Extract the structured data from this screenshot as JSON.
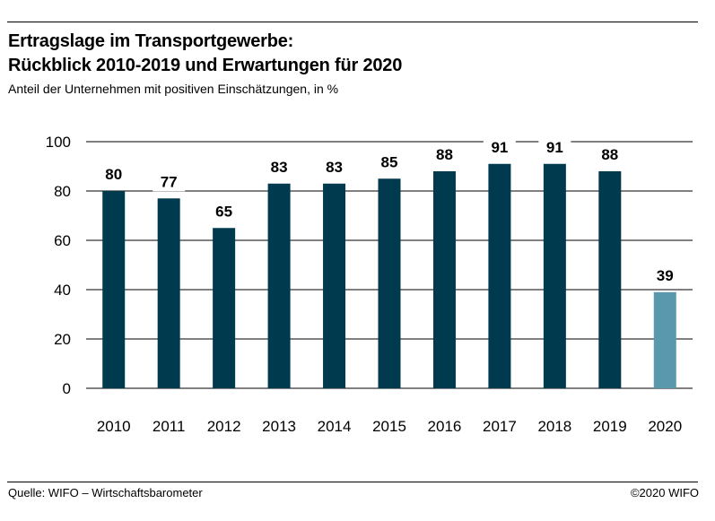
{
  "header": {
    "title_line1": "Ertragslage im Transportgewerbe:",
    "title_line2": "Rückblick 2010-2019 und Erwartungen für 2020",
    "subtitle": "Anteil der Unternehmen mit positiven Einschätzungen, in %"
  },
  "footer": {
    "source": "Quelle: WIFO – Wirtschaftsbarometer",
    "copyright": "©2020 WIFO"
  },
  "chart_data": {
    "type": "bar",
    "categories": [
      "2010",
      "2011",
      "2012",
      "2013",
      "2014",
      "2015",
      "2016",
      "2017",
      "2018",
      "2019",
      "2020"
    ],
    "values": [
      80,
      77,
      65,
      83,
      83,
      85,
      88,
      91,
      91,
      88,
      39
    ],
    "data_labels": [
      "80",
      "77",
      "65",
      "83",
      "83",
      "85",
      "88",
      "91",
      "91",
      "88",
      "39"
    ],
    "y_ticks": [
      0,
      20,
      40,
      60,
      80,
      100
    ],
    "ylim": [
      0,
      100
    ],
    "grid": true,
    "colors": {
      "history": "#003a4f",
      "forecast": "#5a98ae",
      "grid": "#000000"
    },
    "bar_colors": [
      "history",
      "history",
      "history",
      "history",
      "history",
      "history",
      "history",
      "history",
      "history",
      "history",
      "forecast"
    ]
  }
}
